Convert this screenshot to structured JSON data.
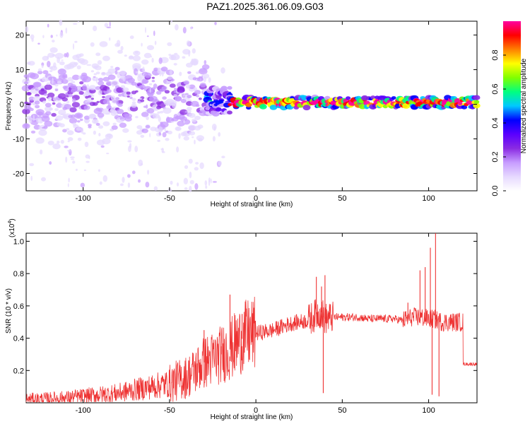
{
  "title": "PAZ1.2025.361.06.09.G03",
  "chart_data": [
    {
      "type": "heatmap",
      "xlabel": "Height of straight line (km)",
      "ylabel": "Frequency (Hz)",
      "xlim": [
        -133,
        128
      ],
      "ylim": [
        -25,
        24
      ],
      "x_ticks": [
        -100,
        -50,
        0,
        50,
        100
      ],
      "y_ticks": [
        -20,
        -10,
        0,
        10,
        20
      ],
      "colorbar": {
        "label": "Normalized spectral amplitude",
        "range": [
          0,
          1
        ],
        "ticks": [
          0.0,
          0.2,
          0.4,
          0.6,
          0.8
        ],
        "colormap": [
          "#ffffff",
          "#e6d9ff",
          "#c79cff",
          "#8a2be2",
          "#5a00ff",
          "#0000ff",
          "#00c8ff",
          "#00ff80",
          "#80ff00",
          "#ffff00",
          "#ff8000",
          "#ff0000",
          "#ff00a0"
        ]
      },
      "ridge": {
        "note": "",
        "segments": [
          {
            "x_start": -133,
            "x_end": -28,
            "freq_center": 2,
            "spread": 12,
            "amplitude": 0.2
          },
          {
            "x_start": -28,
            "x_end": -15,
            "freq_center": 1,
            "spread": 4,
            "amplitude": 0.4
          },
          {
            "x_start": -15,
            "x_end": 128,
            "freq_center": 0.5,
            "spread": 1.5,
            "amplitude": 0.85
          }
        ]
      }
    },
    {
      "type": "line",
      "xlabel": "Height of straight line (km)",
      "ylabel": "SNR (10 * v/v)",
      "scale_label": "(x10",
      "scale_exponent": "4",
      "xlim": [
        -133,
        128
      ],
      "ylim": [
        0,
        1.05
      ],
      "x_ticks": [
        -100,
        -50,
        0,
        50,
        100
      ],
      "y_ticks": [
        0.2,
        0.4,
        0.6,
        0.8,
        1.0
      ],
      "y_tick_labels": [
        "0.2",
        "0.4",
        "0.6",
        "0.8",
        "1.0"
      ],
      "color": "#ee3333",
      "series": [
        {
          "x": [
            -133,
            -120,
            -110,
            -100,
            -90,
            -80,
            -70,
            -60,
            -50,
            -45,
            -40,
            -35,
            -30,
            -25,
            -20,
            -15,
            -10,
            -5,
            0,
            5,
            10,
            15,
            20,
            25,
            30,
            33,
            35,
            38,
            40,
            45,
            50,
            55,
            60,
            65,
            70,
            75,
            80,
            85,
            88,
            90,
            95,
            100,
            103,
            105,
            108,
            110,
            115,
            120,
            121,
            125,
            128
          ],
          "y": [
            0.02,
            0.025,
            0.03,
            0.04,
            0.05,
            0.06,
            0.08,
            0.1,
            0.12,
            0.14,
            0.16,
            0.2,
            0.25,
            0.27,
            0.3,
            0.33,
            0.38,
            0.42,
            0.43,
            0.44,
            0.45,
            0.47,
            0.49,
            0.5,
            0.51,
            0.53,
            0.55,
            0.56,
            0.52,
            0.53,
            0.53,
            0.53,
            0.53,
            0.52,
            0.52,
            0.52,
            0.52,
            0.51,
            0.52,
            0.53,
            0.53,
            0.52,
            0.52,
            0.51,
            0.5,
            0.5,
            0.5,
            0.5,
            0.24,
            0.24,
            0.24
          ],
          "spikes": [
            {
              "x": -30,
              "y": 0.45
            },
            {
              "x": -20,
              "y": 0.35
            },
            {
              "x": -15,
              "y": 0.67
            },
            {
              "x": -8,
              "y": 0.55
            },
            {
              "x": 35,
              "y": 0.78
            },
            {
              "x": 38,
              "y": 0.72
            },
            {
              "x": 39,
              "y": 0.06
            },
            {
              "x": 40,
              "y": 0.79
            },
            {
              "x": 88,
              "y": 0.62
            },
            {
              "x": 95,
              "y": 0.82
            },
            {
              "x": 98,
              "y": 0.84
            },
            {
              "x": 101,
              "y": 0.96
            },
            {
              "x": 102,
              "y": 0.05
            },
            {
              "x": 104,
              "y": 1.05
            },
            {
              "x": 106,
              "y": 0.04
            }
          ]
        }
      ]
    }
  ]
}
